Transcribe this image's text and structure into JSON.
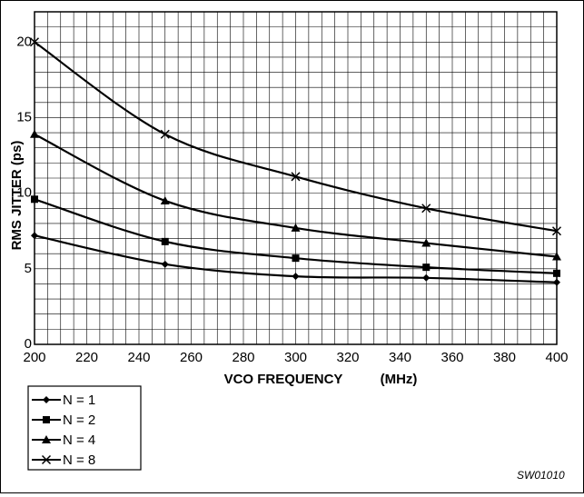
{
  "chart_data": {
    "type": "line",
    "title": "",
    "xlabel": "VCO FREQUENCY",
    "xlabel_unit": "(MHz)",
    "ylabel": "RMS JITTER (ps)",
    "xlim": [
      200,
      400
    ],
    "ylim": [
      0,
      22
    ],
    "xticks": [
      "200",
      "220",
      "240",
      "260",
      "280",
      "300",
      "320",
      "340",
      "360",
      "380",
      "400"
    ],
    "yticks": [
      "0",
      "5",
      "10",
      "15",
      "20"
    ],
    "grid": true,
    "legend_position": "bottom-left",
    "series": [
      {
        "name": "N = 1",
        "marker": "diamond",
        "x": [
          200,
          250,
          300,
          350,
          400
        ],
        "values": [
          7.2,
          5.3,
          4.5,
          4.4,
          4.1
        ]
      },
      {
        "name": "N = 2",
        "marker": "square",
        "x": [
          200,
          250,
          300,
          350,
          400
        ],
        "values": [
          9.6,
          6.8,
          5.7,
          5.1,
          4.7
        ]
      },
      {
        "name": "N = 4",
        "marker": "triangle",
        "x": [
          200,
          250,
          300,
          350,
          400
        ],
        "values": [
          13.9,
          9.5,
          7.7,
          6.7,
          5.8
        ]
      },
      {
        "name": "N = 8",
        "marker": "x",
        "x": [
          200,
          250,
          300,
          350,
          400
        ],
        "values": [
          20.0,
          13.9,
          11.1,
          9.0,
          7.5
        ]
      }
    ],
    "annotation": "SW01010"
  }
}
